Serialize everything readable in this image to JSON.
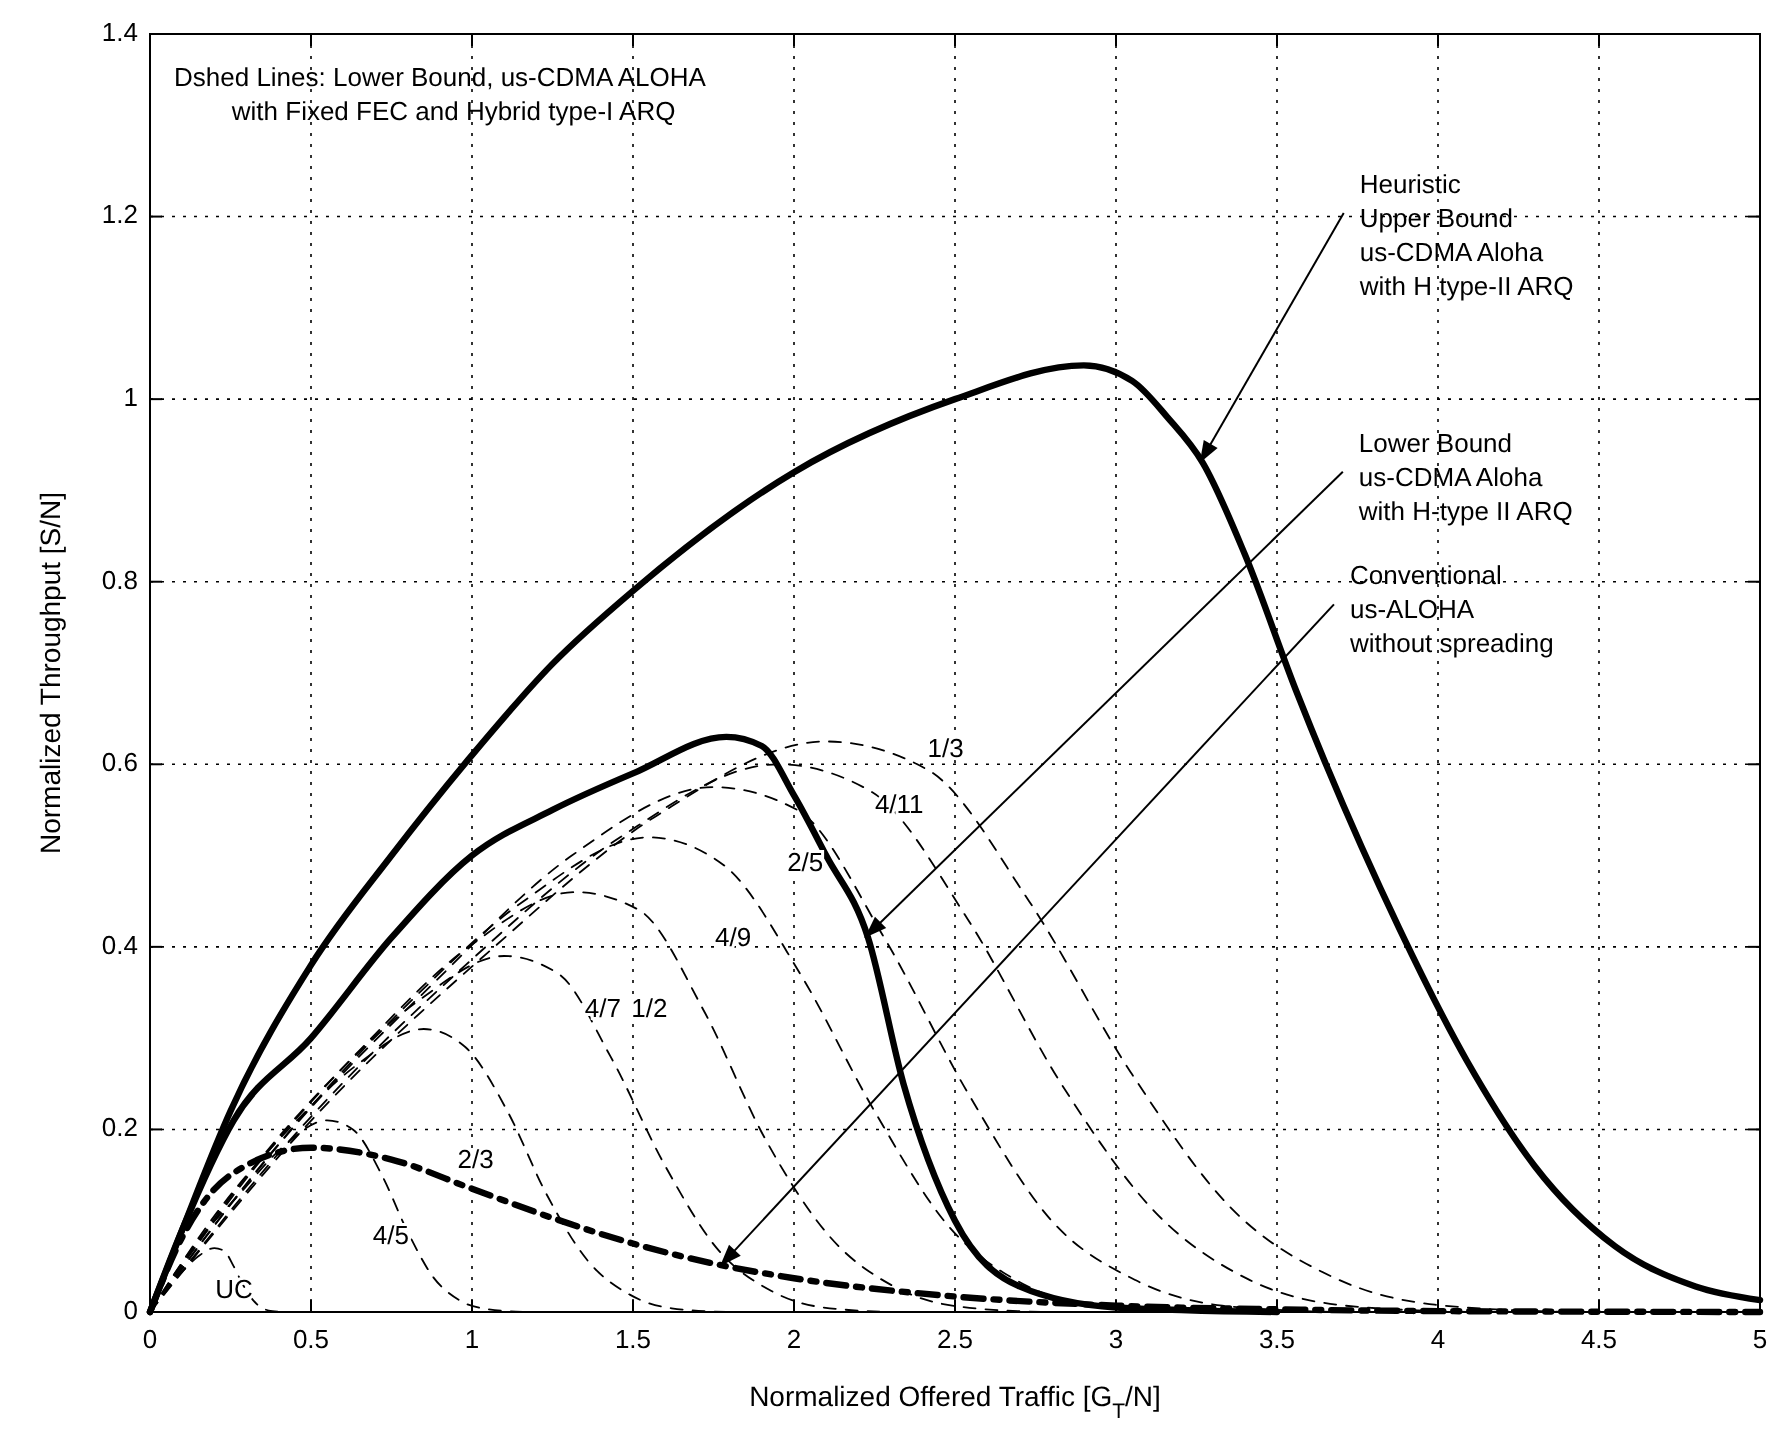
{
  "chart_data": {
    "type": "line",
    "xlabel": "Normalized Offered Traffic [G$_{T}$/N]",
    "ylabel": "Normalized Throughput [S/N]",
    "xlim": [
      0,
      5
    ],
    "ylim": [
      0,
      1.4
    ],
    "xticks": [
      0,
      0.5,
      1,
      1.5,
      2,
      2.5,
      3,
      3.5,
      4,
      4.5,
      5
    ],
    "yticks": [
      0,
      0.2,
      0.4,
      0.6,
      0.8,
      1,
      1.2,
      1.4
    ],
    "grid": true,
    "series": [
      {
        "color": "#000000",
        "line_style": "solid",
        "x": [
          0,
          0.1,
          0.25,
          0.5,
          0.75,
          1,
          1.25,
          1.5,
          2,
          2.5,
          2.9,
          3.05,
          3.16,
          3.27,
          3.4,
          3.56,
          3.88,
          4.09,
          4.3,
          4.55,
          4.8,
          5
        ],
        "values": [
          0,
          0.09,
          0.22,
          0.38,
          0.5,
          0.61,
          0.71,
          0.79,
          0.92,
          1.0,
          1.037,
          1.02,
          0.98,
          0.93,
          0.83,
          0.68,
          0.42,
          0.275,
          0.16,
          0.072,
          0.028,
          0.013
        ]
      },
      {
        "color": "#000000",
        "line_style": "solid",
        "x": [
          0,
          0.1,
          0.26,
          0.5,
          0.75,
          1,
          1.25,
          1.5,
          1.79,
          1.9,
          2,
          2.1,
          2.23,
          2.34,
          2.5,
          2.7,
          3,
          3.5
        ],
        "values": [
          0,
          0.09,
          0.21,
          0.3,
          0.41,
          0.5,
          0.55,
          0.59,
          0.63,
          0.62,
          0.566,
          0.5,
          0.41,
          0.25,
          0.1,
          0.028,
          0.005,
          0
        ]
      },
      {
        "color": "#000000",
        "line_style": "dashdot",
        "x": [
          0,
          0.1,
          0.25,
          0.5,
          0.75,
          1,
          1.25,
          1.5,
          1.75,
          2,
          2.5,
          3,
          3.5,
          4,
          5
        ],
        "values": [
          0,
          0.082,
          0.15,
          0.18,
          0.167,
          0.135,
          0.103,
          0.075,
          0.053,
          0.037,
          0.017,
          0.007,
          0.003,
          0.001,
          0
        ]
      },
      {
        "name": "1/3",
        "color": "#000000",
        "line_style": "dashed",
        "x": [
          0,
          0.525,
          1.05,
          1.575,
          2.1,
          2.415,
          2.73,
          3.045,
          3.36,
          3.675,
          3.99,
          4.41
        ],
        "values": [
          0,
          0.219,
          0.394,
          0.544,
          0.625,
          0.594,
          0.45,
          0.263,
          0.113,
          0.038,
          0.008,
          0
        ]
      },
      {
        "name": "4/11",
        "color": "#000000",
        "line_style": "dashed",
        "x": [
          0,
          0.49,
          0.98,
          1.46,
          1.95,
          2.24,
          2.54,
          2.83,
          3.12,
          3.41,
          3.71,
          4.1
        ],
        "values": [
          0,
          0.21,
          0.38,
          0.52,
          0.6,
          0.57,
          0.43,
          0.25,
          0.11,
          0.036,
          0.007,
          0
        ]
      },
      {
        "name": "2/5",
        "color": "#000000",
        "line_style": "dashed",
        "x": [
          0,
          0.44,
          0.88,
          1.31,
          1.75,
          2.01,
          2.28,
          2.54,
          2.8,
          3.06,
          3.33,
          3.68
        ],
        "values": [
          0,
          0.2,
          0.36,
          0.5,
          0.575,
          0.55,
          0.41,
          0.24,
          0.1,
          0.035,
          0.007,
          0
        ]
      },
      {
        "name": "4/9",
        "color": "#000000",
        "line_style": "dashed",
        "x": [
          0,
          0.39,
          0.78,
          1.16,
          1.55,
          1.78,
          2.02,
          2.25,
          2.48,
          2.71,
          2.95,
          3.26
        ],
        "values": [
          0,
          0.18,
          0.33,
          0.45,
          0.52,
          0.49,
          0.37,
          0.22,
          0.094,
          0.031,
          0.006,
          0
        ]
      },
      {
        "name": "1/2",
        "color": "#000000",
        "line_style": "dashed",
        "x": [
          0,
          0.33,
          0.66,
          0.99,
          1.32,
          1.52,
          1.72,
          1.91,
          2.11,
          2.31,
          2.51,
          2.77
        ],
        "values": [
          0,
          0.16,
          0.29,
          0.4,
          0.46,
          0.44,
          0.33,
          0.19,
          0.083,
          0.028,
          0.006,
          0
        ]
      },
      {
        "name": "4/7",
        "color": "#000000",
        "line_style": "dashed",
        "x": [
          0,
          0.28,
          0.55,
          0.83,
          1.1,
          1.27,
          1.43,
          1.6,
          1.76,
          1.93,
          2.09,
          2.31
        ],
        "values": [
          0,
          0.14,
          0.25,
          0.34,
          0.39,
          0.37,
          0.28,
          0.16,
          0.07,
          0.023,
          0.005,
          0
        ]
      },
      {
        "name": "2/3",
        "color": "#000000",
        "line_style": "dashed",
        "x": [
          0,
          0.21,
          0.43,
          0.64,
          0.85,
          0.98,
          1.11,
          1.23,
          1.36,
          1.49,
          1.62,
          1.79
        ],
        "values": [
          0,
          0.11,
          0.2,
          0.27,
          0.31,
          0.29,
          0.22,
          0.13,
          0.056,
          0.019,
          0.004,
          0
        ]
      },
      {
        "name": "4/5",
        "color": "#000000",
        "line_style": "dashed",
        "x": [
          0,
          0.14,
          0.28,
          0.41,
          0.55,
          0.63,
          0.72,
          0.8,
          0.88,
          0.96,
          1.05,
          1.16
        ],
        "values": [
          0,
          0.074,
          0.13,
          0.18,
          0.21,
          0.2,
          0.15,
          0.088,
          0.038,
          0.013,
          0.003,
          0
        ]
      },
      {
        "name": "UC",
        "color": "#000000",
        "line_style": "dashed",
        "x": [
          0,
          0.05,
          0.1,
          0.15,
          0.2,
          0.23,
          0.26,
          0.29,
          0.32,
          0.35,
          0.38,
          0.42
        ],
        "values": [
          0,
          0.025,
          0.044,
          0.061,
          0.07,
          0.067,
          0.05,
          0.029,
          0.013,
          0.004,
          0.001,
          0
        ]
      }
    ],
    "annotations": [
      "Dshed Lines: Lower Bound, us-CDMA ALOHA\n        with Fixed FEC and Hybrid type-I ARQ",
      {
        "text": "Heuristic\nUpper Bound\nus-CDMA Aloha\nwith H type-II ARQ",
        "x": 3.26,
        "y": 0.93
      },
      {
        "text": "Lower Bound\nus-CDMA Aloha\nwith H-type II ARQ",
        "x": 2.22,
        "y": 0.41
      },
      {
        "text": "Conventional\nus-ALOHA\nwithout spreading",
        "x": 1.77,
        "y": 0.05
      }
    ]
  }
}
